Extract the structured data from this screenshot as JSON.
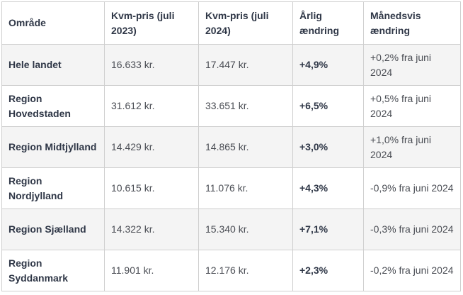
{
  "table": {
    "headers": [
      "Område",
      "Kvm-pris (juli 2023)",
      "Kvm-pris (juli 2024)",
      "Årlig ændring",
      "Månedsvis ændring"
    ],
    "rows": [
      {
        "area": "Hele landet",
        "price_2023": "16.633 kr.",
        "price_2024": "17.447 kr.",
        "annual": "+4,9%",
        "monthly": "+0,2% fra juni 2024"
      },
      {
        "area": "Region Hovedstaden",
        "price_2023": "31.612 kr.",
        "price_2024": "33.651 kr.",
        "annual": "+6,5%",
        "monthly": "+0,5% fra juni 2024"
      },
      {
        "area": "Region Midtjylland",
        "price_2023": "14.429 kr.",
        "price_2024": "14.865 kr.",
        "annual": "+3,0%",
        "monthly": "+1,0% fra juni 2024"
      },
      {
        "area": "Region Nordjylland",
        "price_2023": "10.615 kr.",
        "price_2024": "11.076 kr.",
        "annual": "+4,3%",
        "monthly": "-0,9% fra juni 2024"
      },
      {
        "area": "Region Sjælland",
        "price_2023": "14.322 kr.",
        "price_2024": "15.340 kr.",
        "annual": "+7,1%",
        "monthly": "-0,3% fra juni 2024"
      },
      {
        "area": "Region Syddanmark",
        "price_2023": "11.901 kr.",
        "price_2024": "12.176 kr.",
        "annual": "+2,3%",
        "monthly": "-0,2% fra juni 2024"
      }
    ]
  },
  "colors": {
    "border": "#cfcfcf",
    "shaded_row": "#f4f4f4",
    "header_text": "#2f3747",
    "body_text": "#4a4d54"
  }
}
